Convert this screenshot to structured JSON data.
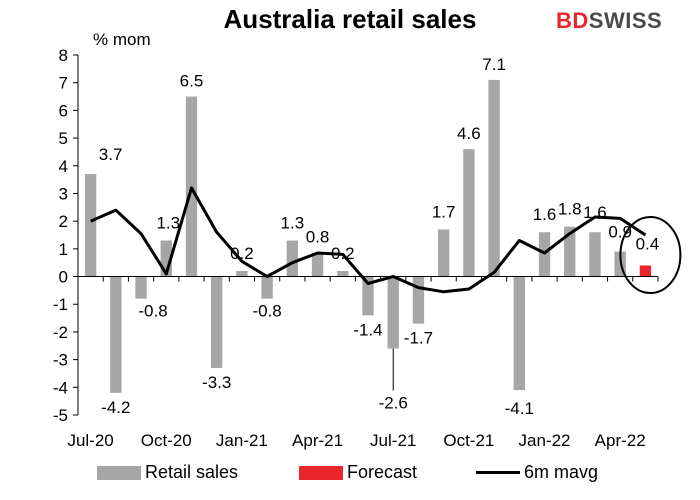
{
  "title": "Australia retail sales",
  "brand": {
    "part1": "BD",
    "part2": "SWISS"
  },
  "chart_data": {
    "type": "bar",
    "title": "Australia retail sales",
    "ylabel": "% mom",
    "ylim": [
      -5,
      8
    ],
    "yticks": [
      "-5",
      "-4",
      "-3",
      "-2",
      "-1",
      "0",
      "1",
      "2",
      "3",
      "4",
      "5",
      "6",
      "7",
      "8"
    ],
    "categories": [
      "Jul-20",
      "Aug-20",
      "Sep-20",
      "Oct-20",
      "Nov-20",
      "Dec-20",
      "Jan-21",
      "Feb-21",
      "Mar-21",
      "Apr-21",
      "May-21",
      "Jun-21",
      "Jul-21",
      "Aug-21",
      "Sep-21",
      "Oct-21",
      "Nov-21",
      "Dec-21",
      "Jan-22",
      "Feb-22",
      "Mar-22",
      "Apr-22",
      "May-22"
    ],
    "xtick_labels": [
      "Jul-20",
      "Oct-20",
      "Jan-21",
      "Apr-21",
      "Jul-21",
      "Oct-21",
      "Jan-22",
      "Apr-22"
    ],
    "series": [
      {
        "name": "Retail sales",
        "type": "bar",
        "color": "#a6a6a6",
        "values": [
          3.7,
          -4.2,
          -0.8,
          1.3,
          6.5,
          -3.3,
          0.2,
          -0.8,
          1.3,
          0.8,
          0.2,
          -1.4,
          -2.6,
          -1.7,
          1.7,
          4.6,
          7.1,
          -4.1,
          1.6,
          1.8,
          1.6,
          0.9,
          null
        ]
      },
      {
        "name": "Forecast",
        "type": "bar",
        "color": "#e8262b",
        "values": [
          null,
          null,
          null,
          null,
          null,
          null,
          null,
          null,
          null,
          null,
          null,
          null,
          null,
          null,
          null,
          null,
          null,
          null,
          null,
          null,
          null,
          null,
          0.4
        ]
      },
      {
        "name": "6m mavg",
        "type": "line",
        "color": "#000000",
        "values": [
          2.0,
          2.4,
          1.55,
          0.1,
          3.2,
          1.6,
          0.55,
          0.0,
          0.5,
          0.85,
          0.8,
          -0.25,
          0.0,
          -0.4,
          -0.55,
          -0.45,
          0.15,
          1.3,
          0.85,
          1.55,
          2.15,
          2.1,
          1.5
        ]
      }
    ],
    "data_labels": [
      "3.7",
      "-4.2",
      "-0.8",
      "1.3",
      "6.5",
      "-3.3",
      "0.2",
      "-0.8",
      "1.3",
      "0.8",
      "0.2",
      "-1.4",
      "-2.6",
      "-1.7",
      "1.7",
      "4.6",
      "7.1",
      "-4.1",
      "1.6",
      "1.8",
      "1.6",
      "0.9",
      "0.4"
    ],
    "legend_position": "bottom",
    "grid": false
  },
  "legend": [
    {
      "label": "Retail sales",
      "color": "#a6a6a6",
      "kind": "bar"
    },
    {
      "label": "Forecast",
      "color": "#e8262b",
      "kind": "bar"
    },
    {
      "label": "6m mavg",
      "color": "#000000",
      "kind": "line"
    }
  ]
}
